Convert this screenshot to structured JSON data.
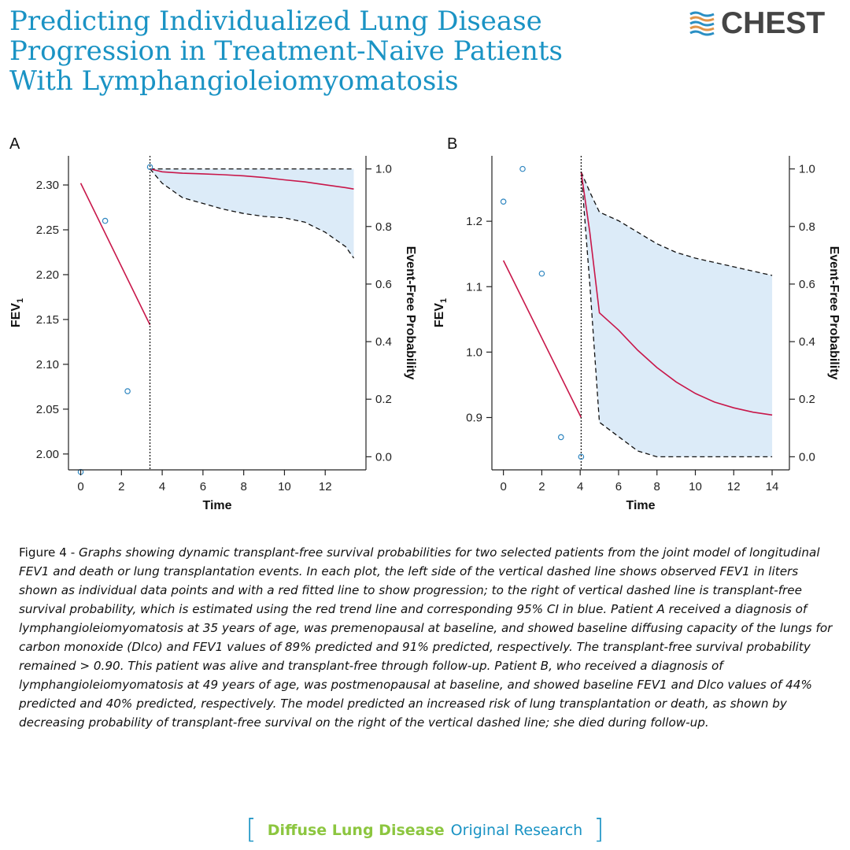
{
  "header": {
    "title_lines": [
      "Predicting Individualized Lung Disease",
      "Progression in Treatment-Naive Patients",
      "With Lymphangioleiomyomatosis"
    ],
    "logo_text": "CHEST",
    "logo_icon": "chest-stripes-logo",
    "title_color": "#1a93c4"
  },
  "panels": [
    {
      "letter": "A"
    },
    {
      "letter": "B"
    }
  ],
  "chart_data": [
    {
      "panel": "A",
      "type": "line",
      "xlabel": "Time",
      "ylabel": "FEV",
      "ylabel_sub": "1",
      "y2label": "Event-Free Probability",
      "xlim": [
        -0.6,
        14.0
      ],
      "xticks": [
        0,
        2,
        4,
        6,
        8,
        10,
        12
      ],
      "ylim": [
        1.9823,
        2.3325
      ],
      "yticks": [
        2.0,
        2.05,
        2.1,
        2.15,
        2.2,
        2.25,
        2.3
      ],
      "ytick_labels": [
        "2.00",
        "2.05",
        "2.10",
        "2.15",
        "2.20",
        "2.25",
        "2.30"
      ],
      "y2lim": [
        -0.0455,
        1.0455
      ],
      "y2ticks": [
        0.0,
        0.2,
        0.4,
        0.6,
        0.8,
        1.0
      ],
      "y2tick_labels": [
        "0.0",
        "0.2",
        "0.4",
        "0.6",
        "0.8",
        "1.0"
      ],
      "landmark_time": 3.4,
      "observed": {
        "x": [
          0,
          1.2,
          2.3,
          3.4
        ],
        "y": [
          1.98,
          2.26,
          2.07,
          2.32
        ]
      },
      "fitted": {
        "x": [
          0,
          3.4
        ],
        "y": [
          2.302,
          2.144
        ]
      },
      "survival": {
        "x": [
          3.4,
          4,
          5,
          6,
          7,
          8,
          9,
          10,
          11,
          12,
          13,
          13.4
        ],
        "estimate": [
          1.0,
          0.99,
          0.985,
          0.983,
          0.98,
          0.976,
          0.97,
          0.962,
          0.955,
          0.945,
          0.935,
          0.93
        ],
        "upper": [
          1.0,
          1.0,
          1.0,
          1.0,
          1.0,
          1.0,
          1.0,
          1.0,
          1.0,
          1.0,
          1.0,
          1.0
        ],
        "lower": [
          1.0,
          0.95,
          0.9,
          0.88,
          0.86,
          0.845,
          0.835,
          0.83,
          0.815,
          0.78,
          0.73,
          0.69
        ]
      }
    },
    {
      "panel": "B",
      "type": "line",
      "xlabel": "Time",
      "ylabel": "FEV",
      "ylabel_sub": "1",
      "y2label": "Event-Free Probability",
      "xlim": [
        -0.6,
        14.9
      ],
      "xticks": [
        0,
        2,
        4,
        6,
        8,
        10,
        12,
        14
      ],
      "ylim": [
        0.82,
        1.3
      ],
      "yticks": [
        0.9,
        1.0,
        1.1,
        1.2
      ],
      "ytick_labels": [
        "0.9",
        "1.0",
        "1.1",
        "1.2"
      ],
      "y2lim": [
        -0.0455,
        1.0455
      ],
      "y2ticks": [
        0.0,
        0.2,
        0.4,
        0.6,
        0.8,
        1.0
      ],
      "y2tick_labels": [
        "0.0",
        "0.2",
        "0.4",
        "0.6",
        "0.8",
        "1.0"
      ],
      "landmark_time": 4.05,
      "observed": {
        "x": [
          0,
          1,
          2,
          3,
          4.05
        ],
        "y": [
          1.23,
          1.28,
          1.12,
          0.87,
          0.84
        ]
      },
      "fitted": {
        "x": [
          0,
          4.05
        ],
        "y": [
          1.14,
          0.9
        ]
      },
      "survival": {
        "x": [
          4.05,
          4.5,
          5,
          6,
          7,
          8,
          9,
          10,
          11,
          12,
          13,
          14
        ],
        "estimate": [
          0.99,
          0.78,
          0.5,
          0.44,
          0.37,
          0.31,
          0.26,
          0.22,
          0.19,
          0.17,
          0.155,
          0.145
        ],
        "upper": [
          0.99,
          0.92,
          0.85,
          0.82,
          0.78,
          0.74,
          0.71,
          0.69,
          0.675,
          0.66,
          0.645,
          0.63
        ],
        "lower": [
          0.99,
          0.6,
          0.12,
          0.07,
          0.02,
          0.0,
          0.0,
          0.0,
          0.0,
          0.0,
          0.0,
          0.0
        ]
      }
    }
  ],
  "caption": {
    "label": "Figure 4 - ",
    "text": "Graphs showing dynamic transplant-free survival probabilities for two selected patients from the joint model of longitudinal FEV1 and death or lung transplantation events. In each plot, the left side of the vertical dashed line shows observed FEV1 in liters shown as individual data points and with a red fitted line to show progression; to the right of vertical dashed line is transplant-free survival probability, which is estimated using the red trend line and corresponding 95% CI in blue. Patient A received a diagnosis of lymphangioleiomyomatosis at 35 years of age, was premenopausal at baseline, and showed baseline diffusing capacity of the lungs for carbon monoxide (Dlco) and FEV1 values of 89% predicted and 91% predicted, respectively. The transplant-free survival probability remained > 0.90. This patient was alive and transplant-free through follow-up. Patient B, who received a diagnosis of lymphangioleiomyomatosis at 49 years of age, was postmenopausal at baseline, and showed baseline FEV1 and Dlco values of 44% predicted and 40% predicted, respectively. The model predicted an increased risk of lung transplantation or death, as shown by decreasing probability of transplant-free survival on the right of the vertical dashed line; she died during follow-up."
  },
  "footer": {
    "open_bracket": "[",
    "section": "Diffuse Lung Disease",
    "article_type": "Original Research",
    "close_bracket": "]"
  },
  "colors": {
    "fitted_line": "#c8174a",
    "observed_point": "#2f86c0",
    "ci_fill": "#dcebf8",
    "axis": "#222222",
    "footer_section": "#8cc63f",
    "accent_blue": "#1a93c4"
  }
}
